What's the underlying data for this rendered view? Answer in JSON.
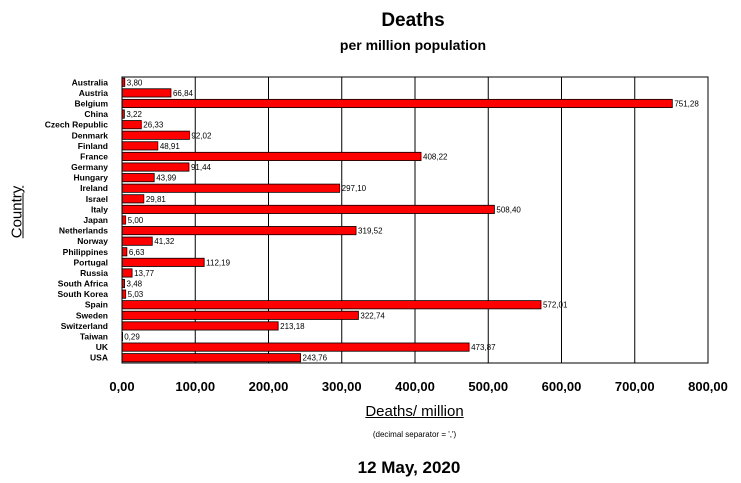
{
  "chart_data": {
    "type": "bar",
    "orientation": "horizontal",
    "title": "Deaths",
    "subtitle": "per million population",
    "xlabel": "Deaths/ million",
    "ylabel": "Country",
    "note": "(decimal separator = ',')",
    "footer": "12 May, 2020",
    "xlim": [
      0,
      800
    ],
    "xticks": [
      "0,00",
      "100,00",
      "200,00",
      "300,00",
      "400,00",
      "500,00",
      "600,00",
      "700,00",
      "800,00"
    ],
    "grid": true,
    "bar_color": "#ff0000",
    "categories": [
      "Australia",
      "Austria",
      "Belgium",
      "China",
      "Czech Republic",
      "Denmark",
      "Finland",
      "France",
      "Germany",
      "Hungary",
      "Ireland",
      "Israel",
      "Italy",
      "Japan",
      "Netherlands",
      "Norway",
      "Philippines",
      "Portugal",
      "Russia",
      "South Africa",
      "South Korea",
      "Spain",
      "Sweden",
      "Switzerland",
      "Taiwan",
      "UK",
      "USA"
    ],
    "values": [
      3.8,
      66.84,
      751.28,
      3.22,
      26.33,
      92.02,
      48.91,
      408.22,
      91.44,
      43.99,
      297.1,
      29.81,
      508.4,
      5.0,
      319.52,
      41.32,
      6.63,
      112.19,
      13.77,
      3.48,
      5.03,
      572.01,
      322.74,
      213.18,
      0.29,
      473.87,
      243.76
    ],
    "value_labels": [
      "3,80",
      "66,84",
      "751,28",
      "3,22",
      "26,33",
      "92,02",
      "48,91",
      "408,22",
      "91,44",
      "43,99",
      "297,10",
      "29,81",
      "508,40",
      "5,00",
      "319,52",
      "41,32",
      "6,63",
      "112,19",
      "13,77",
      "3,48",
      "5,03",
      "572,01",
      "322,74",
      "213,18",
      "0,29",
      "473,87",
      "243,76"
    ]
  }
}
